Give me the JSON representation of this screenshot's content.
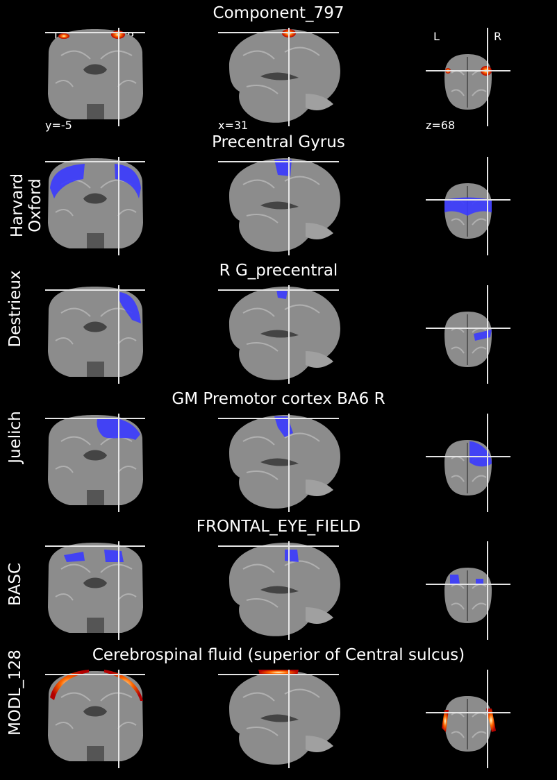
{
  "title": "Component_797",
  "orientation": {
    "left": "L",
    "right": "R"
  },
  "coords": {
    "coronal": "y=-5",
    "sagittal": "x=31",
    "axial": "z=68"
  },
  "rows": [
    {
      "label": "",
      "title": "Component_797",
      "overlay": "heat"
    },
    {
      "label": "Harvard\nOxford",
      "title": "Precentral Gyrus",
      "overlay": "blue"
    },
    {
      "label": "Destrieux",
      "title": "R G_precentral",
      "overlay": "blue"
    },
    {
      "label": "Juelich",
      "title": "GM Premotor cortex BA6 R",
      "overlay": "blue"
    },
    {
      "label": "BASC",
      "title": "FRONTAL_EYE_FIELD",
      "overlay": "blue"
    },
    {
      "label": "MODL_128",
      "title": "Cerebrospinal fluid (superior of Central sulcus)",
      "overlay": "heat"
    }
  ],
  "colors": {
    "background": "#000000",
    "blue": "#3a3aff",
    "heat_a": "#ffffcc",
    "heat_b": "#ff6a00",
    "heat_c": "#b30000",
    "brain": "#8c8c8c",
    "cross": "#e6e6e6"
  }
}
